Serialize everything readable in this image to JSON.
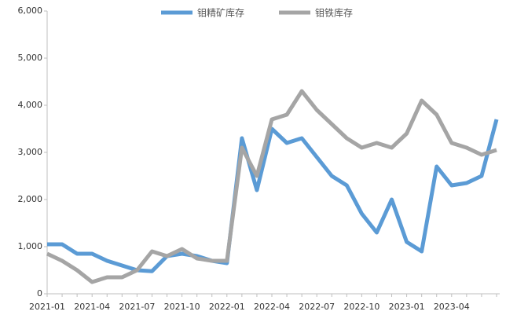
{
  "chart_data": {
    "type": "line",
    "categories": [
      "2021-01",
      null,
      null,
      "2021-04",
      null,
      null,
      "2021-07",
      null,
      null,
      "2021-10",
      null,
      null,
      "2022-01",
      null,
      null,
      "2022-04",
      null,
      null,
      "2022-07",
      null,
      null,
      "2022-10",
      null,
      null,
      "2023-01",
      null,
      null,
      "2023-04",
      null,
      null,
      null
    ],
    "series": [
      {
        "name": "钼精矿库存",
        "color": "#5b9bd5",
        "values": [
          1050,
          1050,
          850,
          850,
          700,
          600,
          500,
          480,
          800,
          850,
          800,
          700,
          650,
          3300,
          2200,
          3500,
          3200,
          3300,
          2900,
          2500,
          2300,
          1700,
          1300,
          2000,
          1100,
          900,
          2700,
          2300,
          2350,
          2500,
          3700
        ]
      },
      {
        "name": "钼铁库存",
        "color": "#a5a5a5",
        "values": [
          850,
          700,
          500,
          250,
          350,
          350,
          500,
          900,
          800,
          950,
          750,
          700,
          700,
          3100,
          2500,
          3700,
          3800,
          4300,
          3900,
          3600,
          3300,
          3100,
          3200,
          3100,
          3400,
          4100,
          3800,
          3200,
          3100,
          2950,
          3050
        ]
      }
    ],
    "ylim": [
      0,
      6000
    ],
    "yticks": [
      0,
      {
        "value": 1000,
        "label": "1,000"
      },
      {
        "value": 2000,
        "label": "2,000"
      },
      {
        "value": 3000,
        "label": "3,000"
      },
      {
        "value": 4000,
        "label": "4,000"
      },
      {
        "value": 5000,
        "label": "5,000"
      },
      {
        "value": 6000,
        "label": "6,000"
      }
    ],
    "legend": "top"
  }
}
